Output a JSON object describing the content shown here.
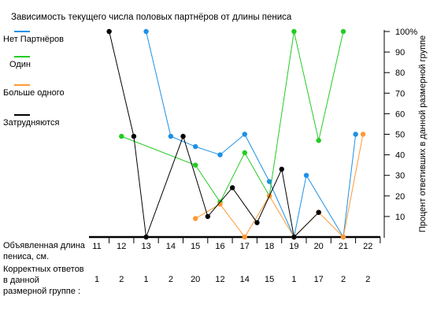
{
  "chart_data": {
    "type": "line",
    "title": "Зависимость текущего числа половых партнёров от длины пениса",
    "xlabel": "Объявленная длина пениса, см.",
    "ylabel": "Процент ответивших в данной размерной группе",
    "count_label": "Корректных ответов в данной размерной группе :",
    "categories": [
      "11",
      "12",
      "13",
      "14",
      "15",
      "16",
      "17",
      "18",
      "19",
      "20",
      "21",
      "22"
    ],
    "counts": [
      "1",
      "2",
      "1",
      "2",
      "20",
      "12",
      "14",
      "15",
      "1",
      "17",
      "2",
      "2"
    ],
    "ylim": [
      0,
      100
    ],
    "yticks": [
      "10",
      "20",
      "30",
      "40",
      "50",
      "60",
      "70",
      "80",
      "90",
      "100%"
    ],
    "grid": false,
    "legend_position": "left",
    "series": [
      {
        "name": "Нет Партнёров",
        "color": "#1e90e6",
        "points": [
          [
            13,
            100
          ],
          [
            14,
            49
          ],
          [
            15,
            44
          ],
          [
            16,
            40
          ],
          [
            17,
            50
          ],
          [
            18,
            27
          ],
          [
            19,
            0
          ],
          [
            19.5,
            30
          ],
          [
            21,
            0
          ],
          [
            21.5,
            50
          ]
        ]
      },
      {
        "name": "Один",
        "color": "#22cc22",
        "points": [
          [
            12,
            49
          ],
          [
            15,
            35
          ],
          [
            16,
            17
          ],
          [
            17,
            41
          ],
          [
            18,
            20
          ],
          [
            19,
            100
          ],
          [
            20,
            47
          ],
          [
            21,
            100
          ]
        ]
      },
      {
        "name": "Больше одного",
        "color": "#ff9933",
        "points": [
          [
            15,
            9
          ],
          [
            16,
            16
          ],
          [
            17,
            0
          ],
          [
            18,
            20
          ],
          [
            19,
            0
          ],
          [
            20,
            12
          ],
          [
            21,
            0
          ],
          [
            21.8,
            50
          ]
        ]
      },
      {
        "name": "Затрудняются",
        "color": "#000000",
        "points": [
          [
            11.5,
            100
          ],
          [
            12.5,
            49
          ],
          [
            13,
            0
          ],
          [
            14.5,
            49
          ],
          [
            15.5,
            10
          ],
          [
            16.5,
            24
          ],
          [
            17.5,
            7
          ],
          [
            18.5,
            33
          ],
          [
            19,
            0
          ],
          [
            20,
            12
          ]
        ]
      }
    ]
  }
}
